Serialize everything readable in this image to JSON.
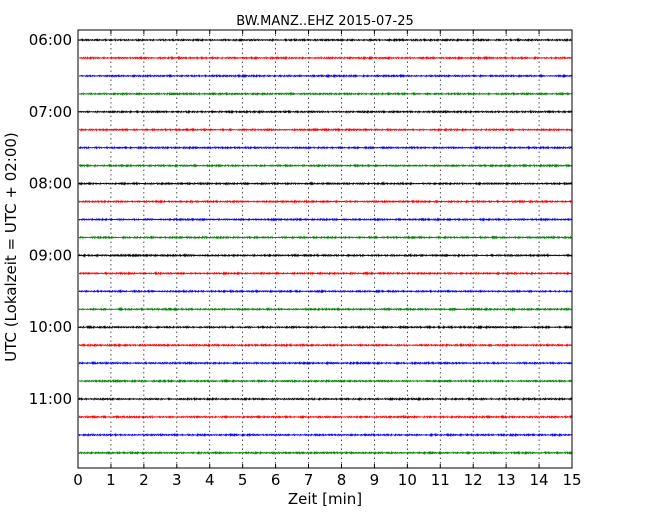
{
  "chart_data": {
    "type": "line",
    "title": "BW.MANZ..EHZ 2015-07-25",
    "xlabel": "Zeit  [min]",
    "ylabel": "UTC (Lokalzeit = UTC + 02:00)",
    "xlim": [
      0,
      15
    ],
    "x_ticks": [
      "0",
      "1",
      "2",
      "3",
      "4",
      "5",
      "6",
      "7",
      "8",
      "9",
      "10",
      "11",
      "12",
      "13",
      "14",
      "15"
    ],
    "y_ticks": [
      "06:00",
      "07:00",
      "08:00",
      "09:00",
      "10:00",
      "11:00"
    ],
    "grid": "vertical dotted",
    "trace_interval_min": 15,
    "colors": [
      "#000000",
      "#ff0000",
      "#0000ff",
      "#008000"
    ],
    "traces": [
      {
        "start": "06:00",
        "color": "#000000"
      },
      {
        "start": "06:15",
        "color": "#ff0000"
      },
      {
        "start": "06:30",
        "color": "#0000ff"
      },
      {
        "start": "06:45",
        "color": "#008000"
      },
      {
        "start": "07:00",
        "color": "#000000"
      },
      {
        "start": "07:15",
        "color": "#ff0000"
      },
      {
        "start": "07:30",
        "color": "#0000ff"
      },
      {
        "start": "07:45",
        "color": "#008000"
      },
      {
        "start": "08:00",
        "color": "#000000"
      },
      {
        "start": "08:15",
        "color": "#ff0000"
      },
      {
        "start": "08:30",
        "color": "#0000ff"
      },
      {
        "start": "08:45",
        "color": "#008000"
      },
      {
        "start": "09:00",
        "color": "#000000"
      },
      {
        "start": "09:15",
        "color": "#ff0000"
      },
      {
        "start": "09:30",
        "color": "#0000ff"
      },
      {
        "start": "09:45",
        "color": "#008000"
      },
      {
        "start": "10:00",
        "color": "#000000"
      },
      {
        "start": "10:15",
        "color": "#ff0000"
      },
      {
        "start": "10:30",
        "color": "#0000ff"
      },
      {
        "start": "10:45",
        "color": "#008000"
      },
      {
        "start": "11:00",
        "color": "#000000"
      },
      {
        "start": "11:15",
        "color": "#ff0000"
      },
      {
        "start": "11:30",
        "color": "#0000ff"
      },
      {
        "start": "11:45",
        "color": "#008000"
      }
    ]
  }
}
